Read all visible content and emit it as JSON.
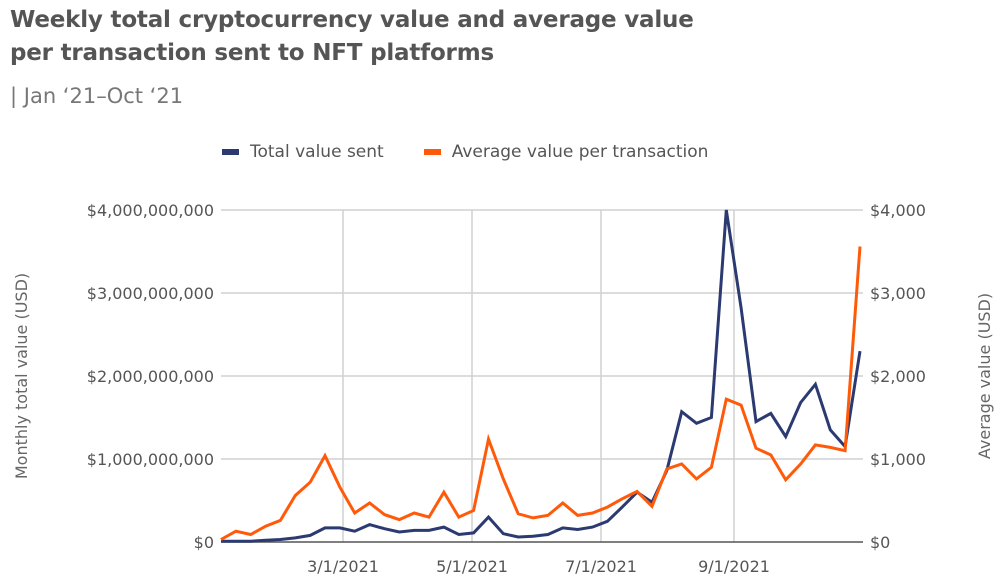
{
  "header": {
    "title": "Weekly total cryptocurrency value and average value per transaction sent to NFT platforms",
    "subtitle": "| Jan ‘21–Oct ‘21"
  },
  "chart_data": {
    "type": "line",
    "title": "Weekly total cryptocurrency value and average value per transaction sent to NFT platforms",
    "subtitle": "| Jan ‘21–Oct ‘21",
    "legend_position": "top",
    "grid": true,
    "x_ticks": [
      "3/1/2021",
      "5/1/2021",
      "7/1/2021",
      "9/1/2021"
    ],
    "y_left": {
      "label": "Monthly total value (USD)",
      "ticks": [
        "$0",
        "$1,000,000,000",
        "$2,000,000,000",
        "$3,000,000,000",
        "$4,000,000,000"
      ],
      "range": [
        0,
        4000000000
      ]
    },
    "y_right": {
      "label": "Average value (USD)",
      "ticks": [
        "$0",
        "$1,000",
        "$2,000",
        "$3,000",
        "$4,000"
      ],
      "range": [
        0,
        4000
      ]
    },
    "series": [
      {
        "name": "Total value sent",
        "axis": "left",
        "color": "#2b3a70",
        "values": [
          10000000,
          10000000,
          10000000,
          20000000,
          30000000,
          50000000,
          80000000,
          170000000,
          170000000,
          130000000,
          210000000,
          160000000,
          120000000,
          140000000,
          140000000,
          180000000,
          90000000,
          110000000,
          300000000,
          100000000,
          60000000,
          70000000,
          90000000,
          170000000,
          150000000,
          180000000,
          250000000,
          420000000,
          600000000,
          480000000,
          860000000,
          1570000000,
          1430000000,
          1500000000,
          4000000000,
          2820000000,
          1450000000,
          1550000000,
          1270000000,
          1680000000,
          1900000000,
          1350000000,
          1150000000,
          2300000000
        ]
      },
      {
        "name": "Average value per transaction",
        "axis": "right",
        "color": "#ff5a0a",
        "values": [
          30,
          130,
          90,
          190,
          260,
          560,
          720,
          1040,
          660,
          350,
          470,
          330,
          270,
          350,
          300,
          600,
          300,
          380,
          1240,
          760,
          340,
          290,
          320,
          470,
          320,
          350,
          420,
          520,
          610,
          430,
          880,
          940,
          760,
          900,
          1720,
          1650,
          1130,
          1050,
          750,
          940,
          1170,
          1140,
          1100,
          3560
        ]
      }
    ]
  }
}
